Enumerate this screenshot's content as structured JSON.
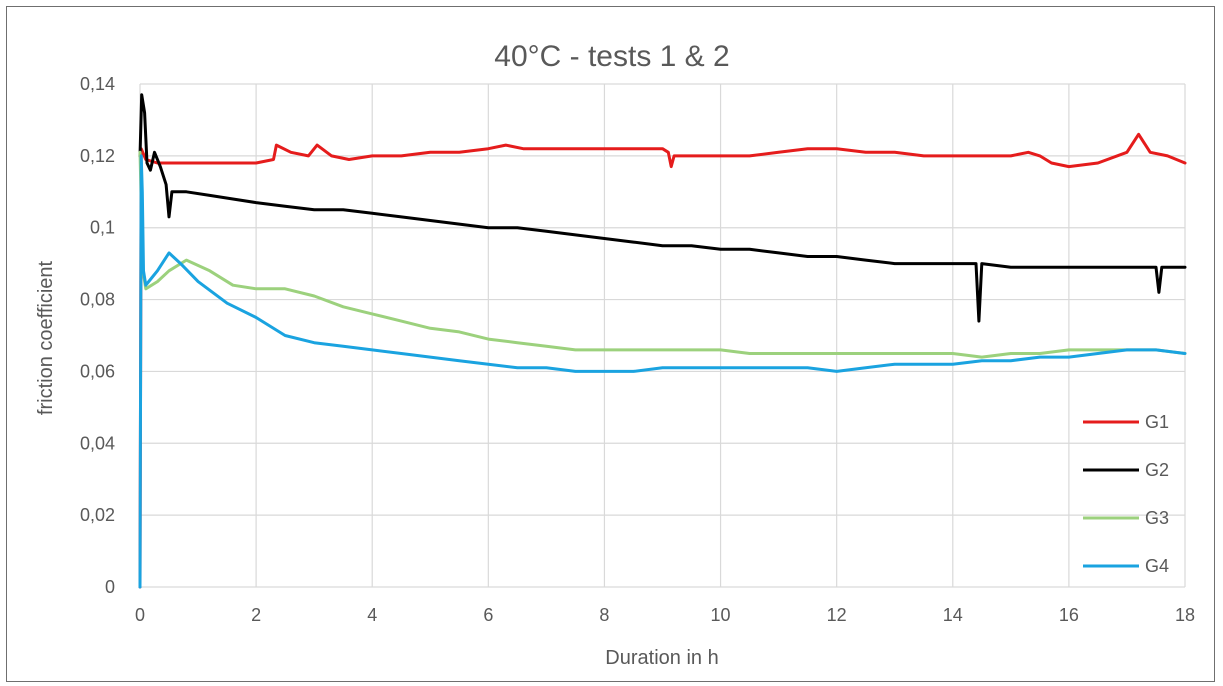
{
  "chart_data": {
    "type": "line",
    "title": "40°C - tests 1 & 2",
    "xlabel": "Duration in h",
    "ylabel": "friction coefficient",
    "xlim": [
      0,
      18
    ],
    "ylim": [
      0,
      0.14
    ],
    "x_ticks": [
      0,
      2,
      4,
      6,
      8,
      10,
      12,
      14,
      16,
      18
    ],
    "x_tick_labels": [
      "0",
      "2",
      "4",
      "6",
      "8",
      "10",
      "12",
      "14",
      "16",
      "18"
    ],
    "y_ticks": [
      0,
      0.02,
      0.04,
      0.06,
      0.08,
      0.1,
      0.12,
      0.14
    ],
    "y_tick_labels": [
      "0",
      "0,02",
      "0,04",
      "0,06",
      "0,08",
      "0,1",
      "0,12",
      "0,14"
    ],
    "grid": true,
    "legend_position": "bottom-right",
    "series": [
      {
        "name": "G1",
        "color": "#e51c1c",
        "points": [
          [
            0,
            0
          ],
          [
            0.02,
            0.122
          ],
          [
            0.1,
            0.119
          ],
          [
            0.3,
            0.118
          ],
          [
            1,
            0.118
          ],
          [
            2,
            0.118
          ],
          [
            2.3,
            0.119
          ],
          [
            2.35,
            0.123
          ],
          [
            2.6,
            0.121
          ],
          [
            2.9,
            0.12
          ],
          [
            3.05,
            0.123
          ],
          [
            3.3,
            0.12
          ],
          [
            3.6,
            0.119
          ],
          [
            4,
            0.12
          ],
          [
            4.5,
            0.12
          ],
          [
            5,
            0.121
          ],
          [
            5.5,
            0.121
          ],
          [
            6,
            0.122
          ],
          [
            6.3,
            0.123
          ],
          [
            6.6,
            0.122
          ],
          [
            7,
            0.122
          ],
          [
            7.5,
            0.122
          ],
          [
            8,
            0.122
          ],
          [
            8.5,
            0.122
          ],
          [
            9,
            0.122
          ],
          [
            9.1,
            0.121
          ],
          [
            9.15,
            0.117
          ],
          [
            9.2,
            0.12
          ],
          [
            9.6,
            0.12
          ],
          [
            10,
            0.12
          ],
          [
            10.5,
            0.12
          ],
          [
            11,
            0.121
          ],
          [
            11.5,
            0.122
          ],
          [
            12,
            0.122
          ],
          [
            12.5,
            0.121
          ],
          [
            13,
            0.121
          ],
          [
            13.5,
            0.12
          ],
          [
            14,
            0.12
          ],
          [
            14.5,
            0.12
          ],
          [
            15,
            0.12
          ],
          [
            15.3,
            0.121
          ],
          [
            15.5,
            0.12
          ],
          [
            15.7,
            0.118
          ],
          [
            16,
            0.117
          ],
          [
            16.5,
            0.118
          ],
          [
            17,
            0.121
          ],
          [
            17.2,
            0.126
          ],
          [
            17.4,
            0.121
          ],
          [
            17.7,
            0.12
          ],
          [
            18,
            0.118
          ]
        ]
      },
      {
        "name": "G2",
        "color": "#000000",
        "points": [
          [
            0,
            0.12
          ],
          [
            0.03,
            0.137
          ],
          [
            0.08,
            0.132
          ],
          [
            0.12,
            0.118
          ],
          [
            0.18,
            0.116
          ],
          [
            0.25,
            0.121
          ],
          [
            0.35,
            0.117
          ],
          [
            0.45,
            0.112
          ],
          [
            0.5,
            0.103
          ],
          [
            0.55,
            0.11
          ],
          [
            0.8,
            0.11
          ],
          [
            1.2,
            0.109
          ],
          [
            1.6,
            0.108
          ],
          [
            2,
            0.107
          ],
          [
            2.5,
            0.106
          ],
          [
            3,
            0.105
          ],
          [
            3.5,
            0.105
          ],
          [
            4,
            0.104
          ],
          [
            4.5,
            0.103
          ],
          [
            5,
            0.102
          ],
          [
            5.5,
            0.101
          ],
          [
            6,
            0.1
          ],
          [
            6.5,
            0.1
          ],
          [
            7,
            0.099
          ],
          [
            7.5,
            0.098
          ],
          [
            8,
            0.097
          ],
          [
            8.5,
            0.096
          ],
          [
            9,
            0.095
          ],
          [
            9.5,
            0.095
          ],
          [
            10,
            0.094
          ],
          [
            10.5,
            0.094
          ],
          [
            11,
            0.093
          ],
          [
            11.5,
            0.092
          ],
          [
            12,
            0.092
          ],
          [
            12.5,
            0.091
          ],
          [
            13,
            0.09
          ],
          [
            13.5,
            0.09
          ],
          [
            14,
            0.09
          ],
          [
            14.4,
            0.09
          ],
          [
            14.45,
            0.074
          ],
          [
            14.5,
            0.09
          ],
          [
            15,
            0.089
          ],
          [
            15.5,
            0.089
          ],
          [
            16,
            0.089
          ],
          [
            16.5,
            0.089
          ],
          [
            17,
            0.089
          ],
          [
            17.5,
            0.089
          ],
          [
            17.55,
            0.082
          ],
          [
            17.6,
            0.089
          ],
          [
            18,
            0.089
          ]
        ]
      },
      {
        "name": "G3",
        "color": "#9cd17d",
        "points": [
          [
            0,
            0.121
          ],
          [
            0.05,
            0.088
          ],
          [
            0.1,
            0.083
          ],
          [
            0.3,
            0.085
          ],
          [
            0.5,
            0.088
          ],
          [
            0.8,
            0.091
          ],
          [
            1.2,
            0.088
          ],
          [
            1.6,
            0.084
          ],
          [
            2,
            0.083
          ],
          [
            2.5,
            0.083
          ],
          [
            3,
            0.081
          ],
          [
            3.5,
            0.078
          ],
          [
            4,
            0.076
          ],
          [
            4.5,
            0.074
          ],
          [
            5,
            0.072
          ],
          [
            5.5,
            0.071
          ],
          [
            6,
            0.069
          ],
          [
            6.5,
            0.068
          ],
          [
            7,
            0.067
          ],
          [
            7.5,
            0.066
          ],
          [
            8,
            0.066
          ],
          [
            8.5,
            0.066
          ],
          [
            9,
            0.066
          ],
          [
            9.5,
            0.066
          ],
          [
            10,
            0.066
          ],
          [
            10.5,
            0.065
          ],
          [
            11,
            0.065
          ],
          [
            11.5,
            0.065
          ],
          [
            12,
            0.065
          ],
          [
            12.5,
            0.065
          ],
          [
            13,
            0.065
          ],
          [
            13.5,
            0.065
          ],
          [
            14,
            0.065
          ],
          [
            14.5,
            0.064
          ],
          [
            15,
            0.065
          ],
          [
            15.5,
            0.065
          ],
          [
            16,
            0.066
          ],
          [
            16.5,
            0.066
          ],
          [
            17,
            0.066
          ],
          [
            17.5,
            0.066
          ],
          [
            18,
            0.065
          ]
        ]
      },
      {
        "name": "G4",
        "color": "#1aa3e0",
        "points": [
          [
            0,
            0
          ],
          [
            0.02,
            0.12
          ],
          [
            0.04,
            0.11
          ],
          [
            0.06,
            0.088
          ],
          [
            0.1,
            0.084
          ],
          [
            0.2,
            0.086
          ],
          [
            0.3,
            0.088
          ],
          [
            0.5,
            0.093
          ],
          [
            0.7,
            0.09
          ],
          [
            1,
            0.085
          ],
          [
            1.5,
            0.079
          ],
          [
            2,
            0.075
          ],
          [
            2.5,
            0.07
          ],
          [
            3,
            0.068
          ],
          [
            3.5,
            0.067
          ],
          [
            4,
            0.066
          ],
          [
            4.5,
            0.065
          ],
          [
            5,
            0.064
          ],
          [
            5.5,
            0.063
          ],
          [
            6,
            0.062
          ],
          [
            6.5,
            0.061
          ],
          [
            7,
            0.061
          ],
          [
            7.5,
            0.06
          ],
          [
            8,
            0.06
          ],
          [
            8.5,
            0.06
          ],
          [
            9,
            0.061
          ],
          [
            9.5,
            0.061
          ],
          [
            10,
            0.061
          ],
          [
            10.5,
            0.061
          ],
          [
            11,
            0.061
          ],
          [
            11.5,
            0.061
          ],
          [
            12,
            0.06
          ],
          [
            12.5,
            0.061
          ],
          [
            13,
            0.062
          ],
          [
            13.5,
            0.062
          ],
          [
            14,
            0.062
          ],
          [
            14.5,
            0.063
          ],
          [
            15,
            0.063
          ],
          [
            15.5,
            0.064
          ],
          [
            16,
            0.064
          ],
          [
            16.5,
            0.065
          ],
          [
            17,
            0.066
          ],
          [
            17.5,
            0.066
          ],
          [
            18,
            0.065
          ]
        ]
      }
    ]
  }
}
